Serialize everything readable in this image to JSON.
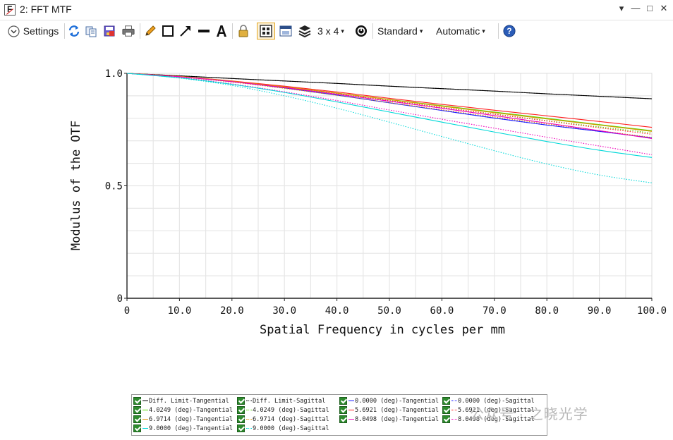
{
  "window": {
    "title": "2: FFT MTF",
    "app_icon": "zemax-f-icon"
  },
  "window_controls": [
    "▾",
    "—",
    "□",
    "✕"
  ],
  "toolbar": {
    "settings_label": "Settings",
    "grid_label": "3 x 4",
    "grid_caret": "▾",
    "standard_label": "Standard",
    "automatic_label": "Automatic",
    "dropdown_caret": "▾",
    "icons": [
      "refresh-icon",
      "copy-icon",
      "save-icon",
      "print-icon",
      "pencil-icon",
      "rectangle-icon",
      "arrow-icon",
      "line-icon",
      "text-icon",
      "lock-icon",
      "layout-icon",
      "window-icon",
      "layers-icon",
      "timer-icon",
      "help-icon"
    ]
  },
  "chart_data": {
    "type": "line",
    "xlabel": "Spatial Frequency in cycles per mm",
    "ylabel": "Modulus of the OTF",
    "xlim": [
      0,
      100
    ],
    "ylim": [
      0,
      1
    ],
    "xticks": [
      "0",
      "10.0",
      "20.0",
      "30.0",
      "40.0",
      "50.0",
      "60.0",
      "70.0",
      "80.0",
      "90.0",
      "100.0"
    ],
    "yticks": [
      "0",
      "0.5",
      "1.0"
    ],
    "grid": true,
    "x": [
      0,
      10,
      20,
      30,
      40,
      50,
      60,
      70,
      80,
      90,
      100
    ],
    "series": [
      {
        "name": "Diff. Limit-Tangential",
        "color": "#000000",
        "dash": "solid",
        "values": [
          1.0,
          0.989,
          0.977,
          0.966,
          0.955,
          0.943,
          0.932,
          0.921,
          0.909,
          0.898,
          0.887
        ]
      },
      {
        "name": "Diff. Limit-Sagittal",
        "color": "#000000",
        "dash": "dot",
        "values": [
          1.0,
          0.989,
          0.977,
          0.966,
          0.955,
          0.943,
          0.932,
          0.921,
          0.909,
          0.898,
          0.887
        ]
      },
      {
        "name": "0.0000 (deg)-Tangential",
        "color": "#1a1aff",
        "dash": "solid",
        "values": [
          1.0,
          0.985,
          0.963,
          0.935,
          0.903,
          0.869,
          0.835,
          0.801,
          0.77,
          0.742,
          0.713
        ]
      },
      {
        "name": "0.0000 (deg)-Sagittal",
        "color": "#1a1aff",
        "dash": "dot",
        "values": [
          1.0,
          0.985,
          0.963,
          0.935,
          0.903,
          0.869,
          0.835,
          0.801,
          0.77,
          0.742,
          0.713
        ]
      },
      {
        "name": "4.0249 (deg)-Tangential",
        "color": "#55dd00",
        "dash": "solid",
        "values": [
          1.0,
          0.986,
          0.965,
          0.94,
          0.912,
          0.884,
          0.856,
          0.828,
          0.8,
          0.772,
          0.745
        ]
      },
      {
        "name": "4.0249 (deg)-Sagittal",
        "color": "#55dd00",
        "dash": "dot",
        "values": [
          1.0,
          0.985,
          0.963,
          0.937,
          0.908,
          0.879,
          0.849,
          0.819,
          0.79,
          0.762,
          0.735
        ]
      },
      {
        "name": "5.6921 (deg)-Tangential",
        "color": "#ff2020",
        "dash": "solid",
        "values": [
          1.0,
          0.986,
          0.966,
          0.943,
          0.917,
          0.889,
          0.862,
          0.836,
          0.811,
          0.786,
          0.76
        ]
      },
      {
        "name": "5.6921 (deg)-Sagittal",
        "color": "#ff2020",
        "dash": "dot",
        "values": [
          1.0,
          0.985,
          0.963,
          0.937,
          0.908,
          0.878,
          0.848,
          0.818,
          0.788,
          0.758,
          0.729
        ]
      },
      {
        "name": "6.9714 (deg)-Tangential",
        "color": "#e09000",
        "dash": "solid",
        "values": [
          1.0,
          0.986,
          0.965,
          0.94,
          0.912,
          0.883,
          0.854,
          0.825,
          0.797,
          0.77,
          0.742
        ]
      },
      {
        "name": "6.9714 (deg)-Sagittal",
        "color": "#e09000",
        "dash": "dot",
        "values": [
          1.0,
          0.984,
          0.961,
          0.933,
          0.902,
          0.87,
          0.838,
          0.806,
          0.775,
          0.745,
          0.715
        ]
      },
      {
        "name": "8.0498 (deg)-Tangential",
        "color": "#ee00bb",
        "dash": "solid",
        "values": [
          1.0,
          0.985,
          0.963,
          0.937,
          0.907,
          0.876,
          0.845,
          0.812,
          0.779,
          0.745,
          0.71
        ]
      },
      {
        "name": "8.0498 (deg)-Sagittal",
        "color": "#ee00bb",
        "dash": "dot",
        "values": [
          1.0,
          0.981,
          0.953,
          0.918,
          0.879,
          0.837,
          0.796,
          0.756,
          0.716,
          0.677,
          0.638
        ]
      },
      {
        "name": "9.0000 (deg)-Tangential",
        "color": "#00d8d8",
        "dash": "solid",
        "values": [
          1.0,
          0.98,
          0.951,
          0.915,
          0.873,
          0.828,
          0.783,
          0.739,
          0.697,
          0.658,
          0.626
        ]
      },
      {
        "name": "9.0000 (deg)-Sagittal",
        "color": "#00d8d8",
        "dash": "dot",
        "values": [
          1.0,
          0.979,
          0.946,
          0.9,
          0.845,
          0.783,
          0.719,
          0.656,
          0.597,
          0.548,
          0.513
        ]
      }
    ]
  },
  "legend": [
    {
      "label": "Diff. Limit-Tangential",
      "color": "#000000",
      "dash": "solid"
    },
    {
      "label": "Diff. Limit-Sagittal",
      "color": "#000000",
      "dash": "dot"
    },
    {
      "label": "0.0000 (deg)-Tangential",
      "color": "#1a1aff",
      "dash": "solid"
    },
    {
      "label": "0.0000 (deg)-Sagittal",
      "color": "#1a1aff",
      "dash": "dot"
    },
    {
      "label": "4.0249 (deg)-Tangential",
      "color": "#55dd00",
      "dash": "solid"
    },
    {
      "label": "4.0249 (deg)-Sagittal",
      "color": "#55dd00",
      "dash": "dot"
    },
    {
      "label": "5.6921 (deg)-Tangential",
      "color": "#ff2020",
      "dash": "solid"
    },
    {
      "label": "5.6921 (deg)-Sagittal",
      "color": "#ff2020",
      "dash": "dot"
    },
    {
      "label": "6.9714 (deg)-Tangential",
      "color": "#e09000",
      "dash": "solid"
    },
    {
      "label": "6.9714 (deg)-Sagittal",
      "color": "#e09000",
      "dash": "dot"
    },
    {
      "label": "8.0498 (deg)-Tangential",
      "color": "#ee00bb",
      "dash": "solid"
    },
    {
      "label": "8.0498 (deg)-Sagittal",
      "color": "#ee00bb",
      "dash": "dot"
    },
    {
      "label": "9.0000 (deg)-Tangential",
      "color": "#00d8d8",
      "dash": "solid"
    },
    {
      "label": "9.0000 (deg)-Sagittal",
      "color": "#00d8d8",
      "dash": "dot"
    }
  ],
  "watermark": "公众号 · 之晓光学"
}
